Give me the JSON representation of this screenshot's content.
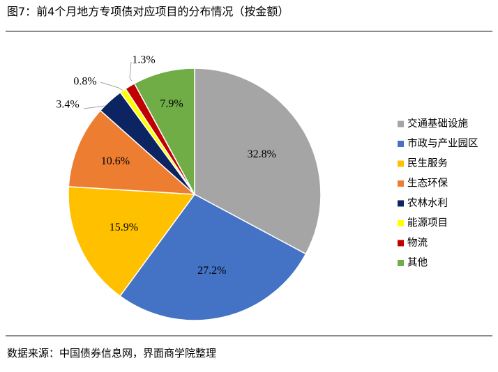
{
  "header": {
    "title": "图7：前4个月地方专项债对应项目的分布情况（按金额）"
  },
  "footer": {
    "source": "数据来源：中国债券信息网，界面商学院整理"
  },
  "chart_data": {
    "type": "pie",
    "title": "图7：前4个月地方专项债对应项目的分布情况（按金额）",
    "start_angle": "12 o'clock",
    "direction": "clockwise",
    "legend_position": "right",
    "unit": "%",
    "categories": [
      "交通基础设施",
      "市政与产业园区",
      "民生服务",
      "生态环保",
      "农林水利",
      "能源项目",
      "物流",
      "其他"
    ],
    "values": [
      32.8,
      27.2,
      15.9,
      10.6,
      3.4,
      0.8,
      1.3,
      7.9
    ],
    "labels": [
      "32.8%",
      "27.2%",
      "15.9%",
      "10.6%",
      "3.4%",
      "0.8%",
      "1.3%",
      "7.9%"
    ],
    "colors": [
      "#a5a5a5",
      "#4472c4",
      "#ffc000",
      "#ed7d31",
      "#0c2462",
      "#ffff00",
      "#c00000",
      "#70ad47"
    ]
  }
}
